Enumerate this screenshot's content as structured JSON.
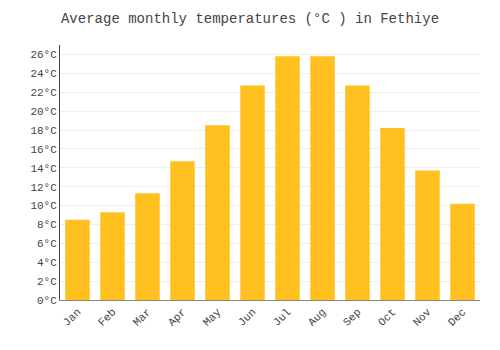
{
  "chart_data": {
    "type": "bar",
    "title": "Average monthly temperatures (°C ) in Fethiye",
    "categories": [
      "Jan",
      "Feb",
      "Mar",
      "Apr",
      "May",
      "Jun",
      "Jul",
      "Aug",
      "Sep",
      "Oct",
      "Nov",
      "Dec"
    ],
    "values": [
      8.5,
      9.3,
      11.3,
      14.7,
      18.5,
      22.7,
      25.8,
      25.8,
      22.7,
      18.2,
      13.7,
      10.2
    ],
    "color": "#FFC020",
    "ylim": [
      0,
      27
    ],
    "yticks": [
      {
        "value": 0,
        "label": "0°C"
      },
      {
        "value": 2,
        "label": "2°C"
      },
      {
        "value": 4,
        "label": "4°C"
      },
      {
        "value": 6,
        "label": "6°C"
      },
      {
        "value": 8,
        "label": "8°C"
      },
      {
        "value": 10,
        "label": "10°C"
      },
      {
        "value": 12,
        "label": "12°C"
      },
      {
        "value": 14,
        "label": "14°C"
      },
      {
        "value": 16,
        "label": "16°C"
      },
      {
        "value": 18,
        "label": "18°C"
      },
      {
        "value": 20,
        "label": "20°C"
      },
      {
        "value": 22,
        "label": "22°C"
      },
      {
        "value": 24,
        "label": "24°C"
      },
      {
        "value": 26,
        "label": "26°C"
      }
    ],
    "grid": true
  }
}
